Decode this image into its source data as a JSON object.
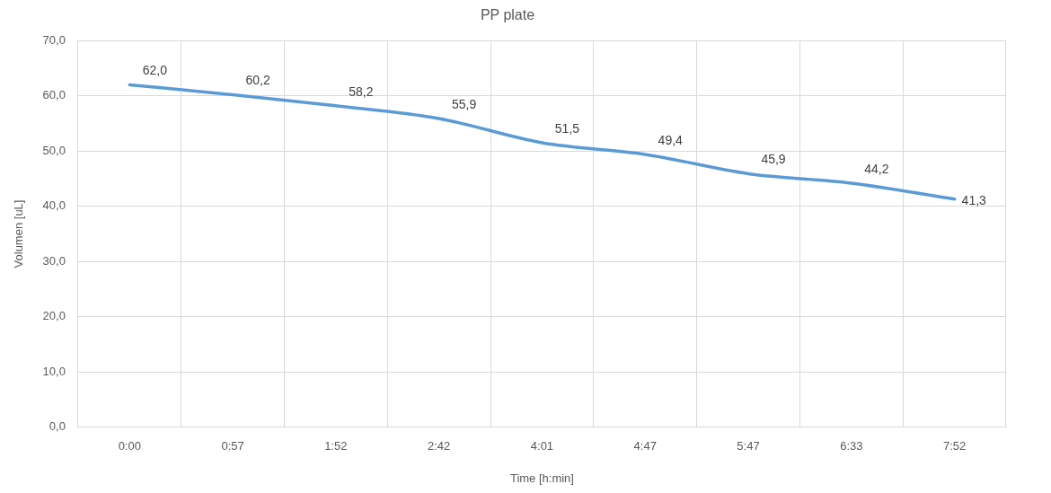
{
  "chart_data": {
    "type": "line",
    "title": "PP plate",
    "xlabel": "Time [h:min]",
    "ylabel": "Volumen [uL]",
    "categories": [
      "0:00",
      "0:57",
      "1:52",
      "2:42",
      "4:01",
      "4:47",
      "5:47",
      "6:33",
      "7:52"
    ],
    "series": [
      {
        "color": "#5b9bd5",
        "values": [
          62.0,
          60.2,
          58.2,
          55.9,
          51.5,
          49.4,
          45.9,
          44.2,
          41.3
        ],
        "value_labels": [
          "62,0",
          "60,2",
          "58,2",
          "55,9",
          "51,5",
          "49,4",
          "45,9",
          "44,2",
          "41,3"
        ]
      }
    ],
    "ylim": [
      0,
      70
    ],
    "yticks": [
      {
        "value": 0,
        "label": "0,0"
      },
      {
        "value": 10,
        "label": "10,0"
      },
      {
        "value": 20,
        "label": "20,0"
      },
      {
        "value": 30,
        "label": "30,0"
      },
      {
        "value": 40,
        "label": "40,0"
      },
      {
        "value": 50,
        "label": "50,0"
      },
      {
        "value": 60,
        "label": "60,0"
      },
      {
        "value": 70,
        "label": "70,0"
      }
    ],
    "grid": true,
    "legend": false,
    "marker": "none",
    "line_style": "solid"
  }
}
